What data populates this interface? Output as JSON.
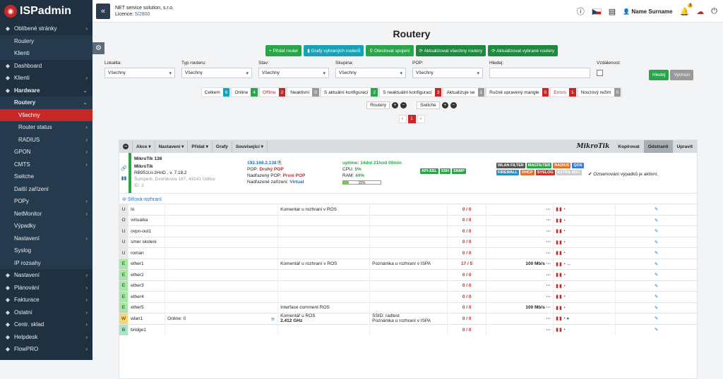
{
  "app": {
    "logo": "ISPadmin"
  },
  "sidebar": {
    "items": [
      {
        "label": "Oblíbené stránky",
        "icon": "star-icon",
        "level": 0,
        "chevron": true
      },
      {
        "label": "Routery",
        "level": 1
      },
      {
        "label": "Klienti",
        "level": 1
      },
      {
        "label": "Dashboard",
        "icon": "dashboard-icon",
        "level": 0
      },
      {
        "label": "Klienti",
        "icon": "users-icon",
        "level": 0,
        "chevron": true
      },
      {
        "label": "Hardware",
        "icon": "hardware-icon",
        "level": 0,
        "chevron": true,
        "bold": true
      },
      {
        "label": "Routery",
        "level": 1,
        "chevron": true,
        "bold": true
      },
      {
        "label": "Všechny",
        "level": 2,
        "active": true
      },
      {
        "label": "Router status",
        "level": 2,
        "chevron": true
      },
      {
        "label": "RADIUS",
        "level": 2,
        "chevron": true
      },
      {
        "label": "GPON",
        "level": 1,
        "chevron": true
      },
      {
        "label": "CMTS",
        "level": 1,
        "chevron": true
      },
      {
        "label": "Switche",
        "level": 1
      },
      {
        "label": "Další zařízení",
        "level": 1
      },
      {
        "label": "POPy",
        "level": 1,
        "chevron": true
      },
      {
        "label": "NetMonitor",
        "level": 1,
        "chevron": true
      },
      {
        "label": "Výpadky",
        "level": 1
      },
      {
        "label": "Nastavení",
        "level": 1,
        "chevron": true
      },
      {
        "label": "Syslog",
        "level": 1
      },
      {
        "label": "IP rozsahy",
        "level": 1
      },
      {
        "label": "Nastavení",
        "icon": "gear-icon",
        "level": 0,
        "chevron": true
      },
      {
        "label": "Plánování",
        "icon": "calendar-icon",
        "level": 0,
        "chevron": true
      },
      {
        "label": "Fakturace",
        "icon": "invoice-icon",
        "level": 0,
        "chevron": true
      },
      {
        "label": "Ostatní",
        "icon": "misc-icon",
        "level": 0,
        "chevron": true
      },
      {
        "label": "Centr. sklad",
        "icon": "warehouse-icon",
        "level": 0,
        "chevron": true
      },
      {
        "label": "Helpdesk",
        "icon": "helpdesk-icon",
        "level": 0,
        "chevron": true
      },
      {
        "label": "FlowPRO",
        "icon": "flow-icon",
        "level": 0,
        "chevron": true
      }
    ]
  },
  "topbar": {
    "company": "NET service solution, s.r.o.",
    "licence_label": "Licence:",
    "licence_value": "5/2800",
    "user": "Name Surname",
    "notif_count": "3"
  },
  "page": {
    "title": "Routery"
  },
  "actions": [
    {
      "label": "+ Přidat router",
      "color": "green"
    },
    {
      "label": "▮ Grafy vybraných routerů",
      "color": "teal"
    },
    {
      "label": "⚲ Otestovat spojení",
      "color": "green"
    },
    {
      "label": "⟳ Aktualizovat všechny routery",
      "color": "dgreen"
    },
    {
      "label": "⟳ Aktualizovat vybrané routery",
      "color": "dgreen"
    }
  ],
  "filters": {
    "lokalita": {
      "label": "Lokalita:",
      "value": "Všechny"
    },
    "typ": {
      "label": "Typ routeru:",
      "value": "Všechny"
    },
    "stav": {
      "label": "Stav:",
      "value": "Všechny"
    },
    "skupina": {
      "label": "Skupina:",
      "value": "Všechny"
    },
    "pop": {
      "label": "POP:",
      "value": "Všechny"
    },
    "hledej": {
      "label": "Hledej:",
      "value": ""
    },
    "vzdalenost": {
      "label": "Vzdálenost:"
    },
    "search_btn": "Hledej",
    "reset_btn": "Vychozi"
  },
  "stats": [
    {
      "label": "Celkem",
      "count": "6",
      "color": "#17a2b8"
    },
    {
      "label": "Online",
      "count": "4",
      "color": "#2aa54a"
    },
    {
      "label": "Offline",
      "count": "2",
      "color": "#c62828",
      "red": true
    },
    {
      "label": "Neaktivní",
      "count": "0",
      "color": "#9a9a9a"
    },
    {
      "label": "S aktuální konfigurací",
      "count": "2",
      "color": "#2aa54a"
    },
    {
      "label": "S neaktuální konfigurací",
      "count": "3",
      "color": "#c62828"
    },
    {
      "label": "Aktualizuje se",
      "count": "1",
      "color": "#9a9a9a"
    },
    {
      "label": "Ručně upravený mangle",
      "count": "0",
      "color": "#c62828"
    },
    {
      "label": "Errors",
      "count": "1",
      "color": "#c62828",
      "red": true
    },
    {
      "label": "Nouzový režim",
      "count": "0",
      "color": "#9a9a9a"
    }
  ],
  "toggles": {
    "routery": "Routery",
    "switche": "Switche"
  },
  "pager": {
    "current": "1"
  },
  "card": {
    "menus": [
      "Akce ▾",
      "Nastavení ▾",
      "Přidat ▾",
      "Grafy",
      "Související ▾"
    ],
    "brand": "MikroTik",
    "copy": "Kopírovat",
    "remove": "Odstranit",
    "edit": "Upravit"
  },
  "router": {
    "name": "MikroTik 138",
    "brand": "MikroTik",
    "model": "RB951Ui-2HnD , v. 7.18.2",
    "address": "Šumperk, Dvořákova 187, 43141 Údlice",
    "id": "ID: 2",
    "ip": "192.168.2.138",
    "pop_label": "POP:",
    "pop": "Druhý POP",
    "parent_pop_label": "Nadřazený POP:",
    "parent_pop": "První POP",
    "parent_dev_label": "Nadřazené zařízení:",
    "parent_dev": "Virtual",
    "uptime": "uptime: 14dní 21hod 00min",
    "cpu_label": "CPU:",
    "cpu": "5%",
    "ram_label": "RAM:",
    "ram": "44%",
    "progress_label": "15%",
    "progress": 15,
    "services": [
      {
        "label": "API-SSL"
      },
      {
        "label": "SSH"
      },
      {
        "label": "SNMP"
      }
    ],
    "features": [
      {
        "label": "WLAN FILTER",
        "color": "#555"
      },
      {
        "label": "MACFILTER",
        "color": "#2aa54a"
      },
      {
        "label": "RADIUS",
        "color": "#e0702a"
      },
      {
        "label": "QOS",
        "color": "#3a7bd5"
      },
      {
        "label": "FIREWALL",
        "color": "#2a8fbd"
      },
      {
        "label": "DHCP",
        "color": "#e0702a"
      },
      {
        "label": "SYSLOG",
        "color": "#c0392b"
      },
      {
        "label": "EXTRA MAC",
        "color": "#ccc"
      }
    ],
    "notice": "Oznamování výpadků je aktivní."
  },
  "interfaces": {
    "title": "Síťová rozhraní",
    "rows": [
      {
        "letter": "U",
        "color": "#e8e8e8",
        "name": "lo",
        "col3": "",
        "comment": "Komentar u rozhrani v ROS",
        "note": "",
        "traffic": "0 / 0",
        "speed": ""
      },
      {
        "letter": "O",
        "color": "#e8e8e8",
        "name": "virtualka",
        "col3": "",
        "comment": "",
        "note": "",
        "traffic": "0 / 0",
        "speed": ""
      },
      {
        "letter": "U",
        "color": "#e8e8e8",
        "name": "ovpn-out1",
        "col3": "",
        "comment": "",
        "note": "",
        "traffic": "0 / 0",
        "speed": ""
      },
      {
        "letter": "U",
        "color": "#e8e8e8",
        "name": "smer skoleni",
        "col3": "",
        "comment": "",
        "note": "",
        "traffic": "0 / 0",
        "speed": ""
      },
      {
        "letter": "U",
        "color": "#e8e8e8",
        "name": "roman",
        "col3": "",
        "comment": "",
        "note": "",
        "traffic": "0 / 0",
        "speed": ""
      },
      {
        "letter": "E",
        "color": "#a8e6a8",
        "name": "ether1",
        "col3": "",
        "comment": "Komentář u rozhraní v ROS",
        "note": "Poznámka u rozhraní v ISPA",
        "traffic": "17 / 5",
        "speed": "100 Mb/s"
      },
      {
        "letter": "E",
        "color": "#a8e6a8",
        "name": "ether2",
        "col3": "",
        "comment": "",
        "note": "",
        "traffic": "0 / 0",
        "speed": ""
      },
      {
        "letter": "E",
        "color": "#a8e6a8",
        "name": "ether3",
        "col3": "",
        "comment": "",
        "note": "",
        "traffic": "0 / 0",
        "speed": ""
      },
      {
        "letter": "E",
        "color": "#a8e6a8",
        "name": "ether4",
        "col3": "",
        "comment": "",
        "note": "",
        "traffic": "0 / 0",
        "speed": ""
      },
      {
        "letter": "E",
        "color": "#a8e6a8",
        "name": "ether5",
        "col3": "",
        "comment": "Interface comment ROS",
        "note": "",
        "traffic": "0 / 0",
        "speed": "100 Mb/s"
      },
      {
        "letter": "W",
        "color": "#f7d774",
        "name": "wlan1",
        "col3": "Online: 0",
        "comment": "Komentář u ROS",
        "comment2": "2.412 GHz",
        "note": "SSID: radtest",
        "note2": "Poznámka u rozhraní v ISPA",
        "traffic": "0 / 0",
        "speed": ""
      },
      {
        "letter": "B",
        "color": "#a8e6c8",
        "name": "bridge1",
        "col3": "",
        "comment": "",
        "note": "",
        "traffic": "0 / 0",
        "speed": ""
      }
    ]
  }
}
